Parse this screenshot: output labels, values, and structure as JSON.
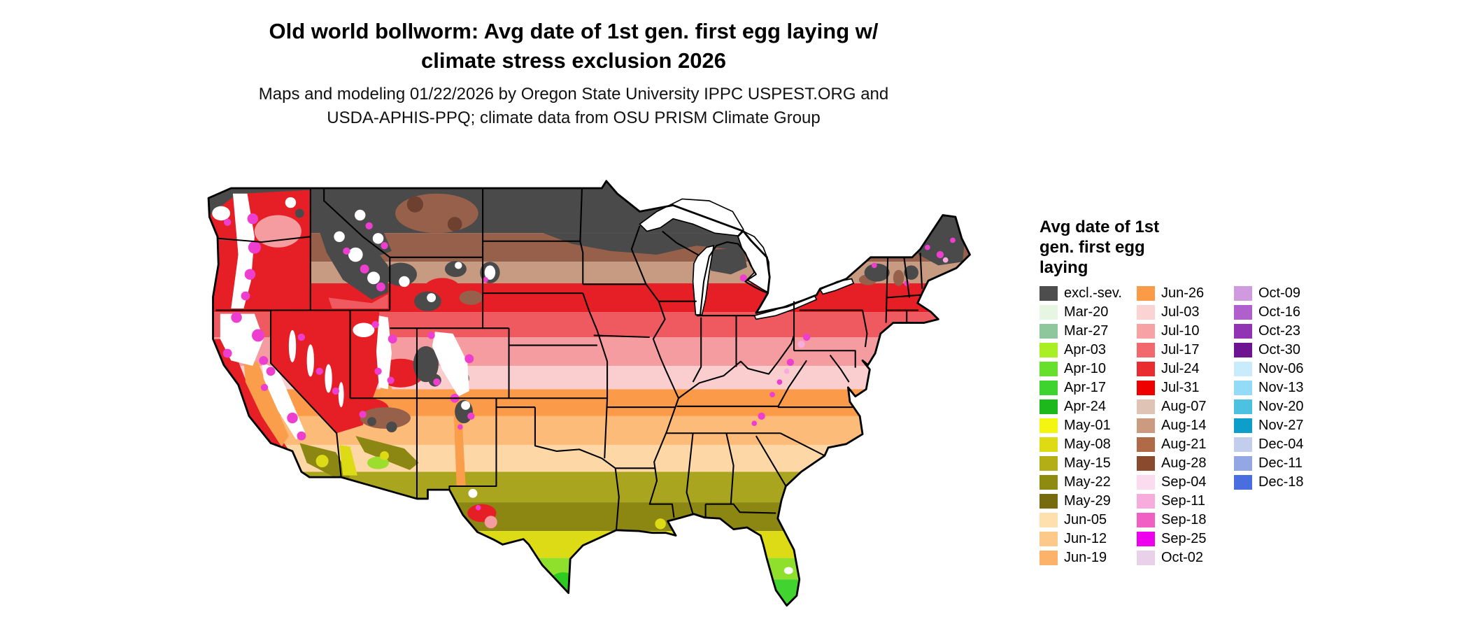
{
  "title": {
    "line1": "Old world bollworm: Avg date of 1st gen. first egg laying w/",
    "line2": "climate stress exclusion 2026"
  },
  "subtitle": {
    "line1": "Maps and modeling 01/22/2026 by Oregon State University IPPC USPEST.ORG and",
    "line2": "USDA-APHIS-PPQ; climate data from OSU PRISM Climate Group"
  },
  "legend": {
    "title_lines": [
      "Avg date of 1st",
      "gen. first egg",
      "laying"
    ],
    "columns": [
      [
        {
          "label": "excl.-sev.",
          "color": "#4d4d4d"
        },
        {
          "label": "Mar-20",
          "color": "#e7f6e3"
        },
        {
          "label": "Mar-27",
          "color": "#8ec79b"
        },
        {
          "label": "Apr-03",
          "color": "#a8ef25"
        },
        {
          "label": "Apr-10",
          "color": "#66e02a"
        },
        {
          "label": "Apr-17",
          "color": "#3ed32f"
        },
        {
          "label": "Apr-24",
          "color": "#1cb81c"
        },
        {
          "label": "May-01",
          "color": "#f5f512"
        },
        {
          "label": "May-08",
          "color": "#dedb14"
        },
        {
          "label": "May-15",
          "color": "#b3ae15"
        },
        {
          "label": "May-22",
          "color": "#8f8a10"
        },
        {
          "label": "May-29",
          "color": "#776b10"
        },
        {
          "label": "Jun-05",
          "color": "#fee0ae"
        },
        {
          "label": "Jun-12",
          "color": "#fdc98b"
        },
        {
          "label": "Jun-19",
          "color": "#fcb269"
        }
      ],
      [
        {
          "label": "Jun-26",
          "color": "#fb9a47"
        },
        {
          "label": "Jul-03",
          "color": "#fbd3d3"
        },
        {
          "label": "Jul-10",
          "color": "#f7a3a5"
        },
        {
          "label": "Jul-17",
          "color": "#f2686c"
        },
        {
          "label": "Jul-24",
          "color": "#ea2c30"
        },
        {
          "label": "Jul-31",
          "color": "#ee0000"
        },
        {
          "label": "Aug-07",
          "color": "#dfc3b4"
        },
        {
          "label": "Aug-14",
          "color": "#cc9a7e"
        },
        {
          "label": "Aug-21",
          "color": "#b06a48"
        },
        {
          "label": "Aug-28",
          "color": "#8a4a2e"
        },
        {
          "label": "Sep-04",
          "color": "#fadcee"
        },
        {
          "label": "Sep-11",
          "color": "#f8abdd"
        },
        {
          "label": "Sep-18",
          "color": "#f25fc4"
        },
        {
          "label": "Sep-25",
          "color": "#ee00ee"
        },
        {
          "label": "Oct-02",
          "color": "#ead1ea"
        }
      ],
      [
        {
          "label": "Oct-09",
          "color": "#cf9ade"
        },
        {
          "label": "Oct-16",
          "color": "#b060cc"
        },
        {
          "label": "Oct-23",
          "color": "#9233b3"
        },
        {
          "label": "Oct-30",
          "color": "#6e1492"
        },
        {
          "label": "Nov-06",
          "color": "#c8ecfb"
        },
        {
          "label": "Nov-13",
          "color": "#93dbf6"
        },
        {
          "label": "Nov-20",
          "color": "#4cc1e0"
        },
        {
          "label": "Nov-27",
          "color": "#0d9ec9"
        },
        {
          "label": "Dec-04",
          "color": "#c3cdec"
        },
        {
          "label": "Dec-11",
          "color": "#93a7e4"
        },
        {
          "label": "Dec-18",
          "color": "#4a6de0"
        }
      ]
    ]
  }
}
